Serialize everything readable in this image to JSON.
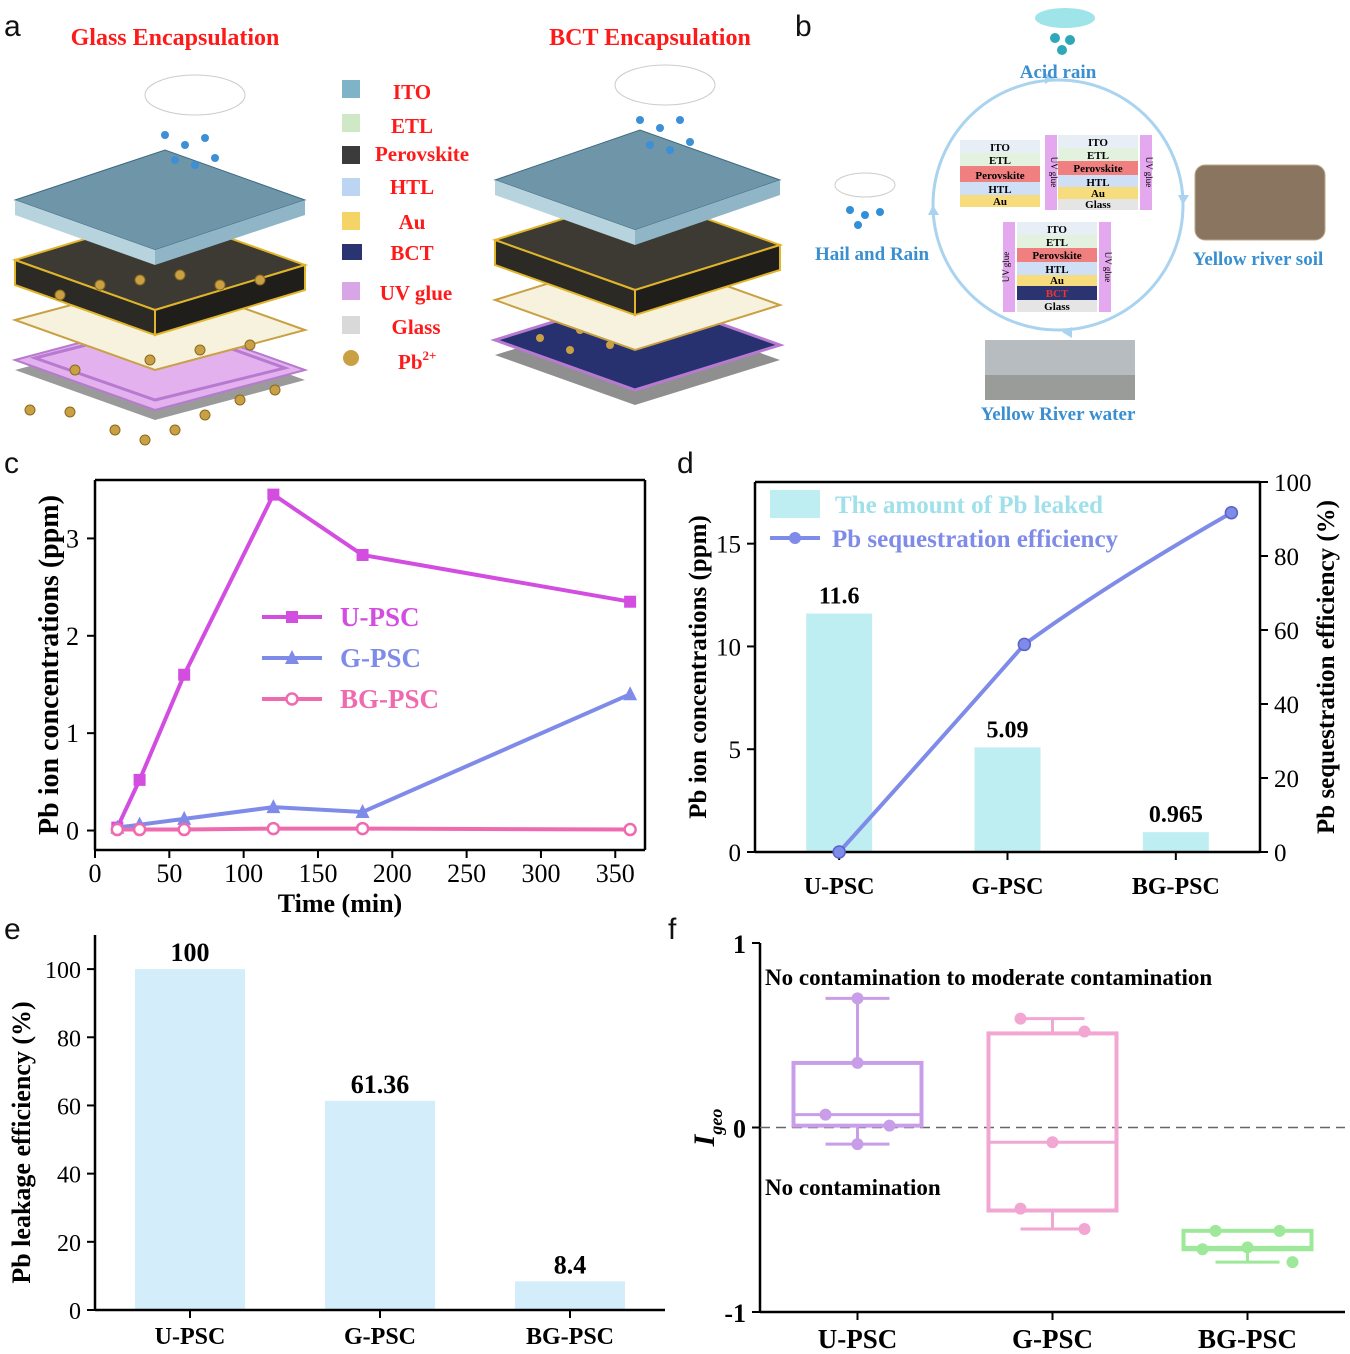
{
  "panel_labels": [
    "a",
    "b",
    "c",
    "d",
    "e",
    "f"
  ],
  "panel_a": {
    "title_left": "Glass Encapsulation",
    "title_right": "BCT Encapsulation",
    "legend": [
      {
        "label": "ITO",
        "color": "#7fb3c8"
      },
      {
        "label": "ETL",
        "color": "#cfe8c6"
      },
      {
        "label": "Perovskite",
        "color": "#3b3b3b"
      },
      {
        "label": "HTL",
        "color": "#bcd5f2"
      },
      {
        "label": "Au",
        "color": "#f5d467"
      },
      {
        "label": "BCT",
        "color": "#2a3470"
      },
      {
        "label": "UV glue",
        "color": "#d8a6e6"
      },
      {
        "label": "Glass",
        "color": "#d9d9d9"
      },
      {
        "label": "Pb",
        "sup": "2+",
        "color": "#c9a043"
      }
    ]
  },
  "panel_b": {
    "acid_rain": "Acid rain",
    "hail_rain": "Hail and Rain",
    "yellow_soil": "Yellow river soil",
    "yellow_water": "Yellow River water",
    "device_left": [
      "ITO",
      "ETL",
      "Perovskite",
      "HTL",
      "Au"
    ],
    "device_right": [
      "ITO",
      "ETL",
      "Perovskite",
      "HTL",
      "Au",
      "Glass"
    ],
    "device_bottom": [
      "ITO",
      "ETL",
      "Perovskite",
      "HTL",
      "Au",
      "BCT",
      "Glass"
    ],
    "uv_glue": "UV glue"
  },
  "chart_data": [
    {
      "panel": "c",
      "type": "line",
      "xlabel": "Time (min)",
      "ylabel": "Pb ion concentrations (ppm)",
      "xlim": [
        0,
        370
      ],
      "ylim": [
        -0.2,
        3.6
      ],
      "xticks": [
        "0",
        "50",
        "100",
        "150",
        "200",
        "250",
        "300",
        "350"
      ],
      "yticks": [
        "0",
        "1",
        "2",
        "3"
      ],
      "legend_position": "center-left",
      "series": [
        {
          "name": "U-PSC",
          "color": "#d24de0",
          "marker": "square",
          "x": [
            15,
            30,
            60,
            120,
            180,
            360
          ],
          "y": [
            0.03,
            0.52,
            1.6,
            3.45,
            2.83,
            2.35
          ]
        },
        {
          "name": "G-PSC",
          "color": "#7f8be8",
          "marker": "triangle",
          "x": [
            15,
            30,
            60,
            120,
            180,
            360
          ],
          "y": [
            0.03,
            0.06,
            0.12,
            0.24,
            0.19,
            1.4
          ]
        },
        {
          "name": "BG-PSC",
          "color": "#f06ab0",
          "marker": "circle",
          "x": [
            15,
            30,
            60,
            120,
            180,
            360
          ],
          "y": [
            0.01,
            0.01,
            0.01,
            0.02,
            0.02,
            0.01
          ]
        }
      ]
    },
    {
      "panel": "d",
      "type": "bar",
      "categories": [
        "U-PSC",
        "G-PSC",
        "BG-PSC"
      ],
      "ylabel": "Pb ion concentrations (ppm)",
      "y2label": "Pb sequestration efficiency (%)",
      "ylim": [
        0,
        18
      ],
      "y2lim": [
        0,
        100
      ],
      "yticks": [
        "0",
        "5",
        "10",
        "15"
      ],
      "y2ticks": [
        "0",
        "20",
        "40",
        "60",
        "80",
        "100"
      ],
      "legend_position": "top-left",
      "series": [
        {
          "name": "The amount of Pb leaked",
          "type": "bar",
          "color": "#bfeef2",
          "values": [
            11.6,
            5.09,
            0.965
          ],
          "labels": [
            "11.6",
            "5.09",
            "0.965"
          ]
        },
        {
          "name": "Pb sequestration efficiency",
          "type": "line",
          "color": "#7f8be8",
          "axis": "right",
          "x_positions": [
            0.5,
            1.6,
            2.83
          ],
          "values": [
            0,
            56.1,
            91.7
          ]
        }
      ]
    },
    {
      "panel": "e",
      "type": "bar",
      "categories": [
        "U-PSC",
        "G-PSC",
        "BG-PSC"
      ],
      "ylabel": "Pb leakage efficiency (%)",
      "ylim": [
        0,
        110
      ],
      "yticks": [
        "0",
        "20",
        "40",
        "60",
        "80",
        "100"
      ],
      "values": [
        100,
        61.36,
        8.4
      ],
      "labels": [
        "100",
        "61.36",
        "8.4"
      ],
      "color": "#d3eefa"
    },
    {
      "panel": "f",
      "type": "box",
      "categories": [
        "U-PSC",
        "G-PSC",
        "BG-PSC"
      ],
      "ylabel": "I",
      "ylabel_sub": "geo",
      "ylim": [
        -1,
        1
      ],
      "yticks": [
        "-1",
        "0",
        "1"
      ],
      "annotations": [
        "No contamination to moderate contamination",
        "No contamination"
      ],
      "boxes": [
        {
          "name": "U-PSC",
          "color": "#c99ee8",
          "whisker_low": -0.09,
          "q1": 0.01,
          "median": 0.07,
          "q3": 0.35,
          "whisker_high": 0.7,
          "points": [
            0.7,
            0.35,
            0.07,
            0.01,
            -0.09
          ]
        },
        {
          "name": "G-PSC",
          "color": "#f2a6d2",
          "whisker_low": -0.55,
          "q1": -0.45,
          "median": -0.08,
          "q3": 0.51,
          "whisker_high": 0.59,
          "points": [
            0.59,
            0.52,
            -0.08,
            -0.44,
            -0.55
          ]
        },
        {
          "name": "BG-PSC",
          "color": "#9ee89a",
          "whisker_low": -0.73,
          "q1": -0.66,
          "median": -0.65,
          "q3": -0.56,
          "whisker_high": -0.56,
          "points": [
            -0.56,
            -0.56,
            -0.65,
            -0.66,
            -0.73
          ]
        }
      ]
    }
  ]
}
